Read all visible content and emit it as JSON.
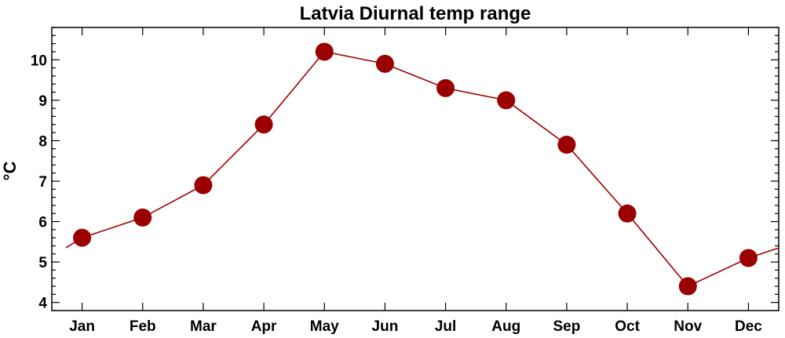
{
  "chart_data": {
    "type": "line",
    "title": "Latvia Diurnal temp range",
    "xlabel": "",
    "ylabel": "°C",
    "categories": [
      "Jan",
      "Feb",
      "Mar",
      "Apr",
      "May",
      "Jun",
      "Jul",
      "Aug",
      "Sep",
      "Oct",
      "Nov",
      "Dec"
    ],
    "series": [
      {
        "values": [
          5.6,
          6.1,
          6.9,
          8.4,
          10.2,
          9.9,
          9.3,
          9.0,
          7.9,
          6.2,
          4.4,
          5.1
        ],
        "line_color": "#a00000",
        "marker_color": "#9a0000",
        "wraps_around": true
      }
    ],
    "ylim": [
      3.8,
      10.8
    ],
    "yticks": [
      4,
      5,
      6,
      7,
      8,
      9,
      10
    ],
    "grid": false,
    "legend": "none"
  }
}
